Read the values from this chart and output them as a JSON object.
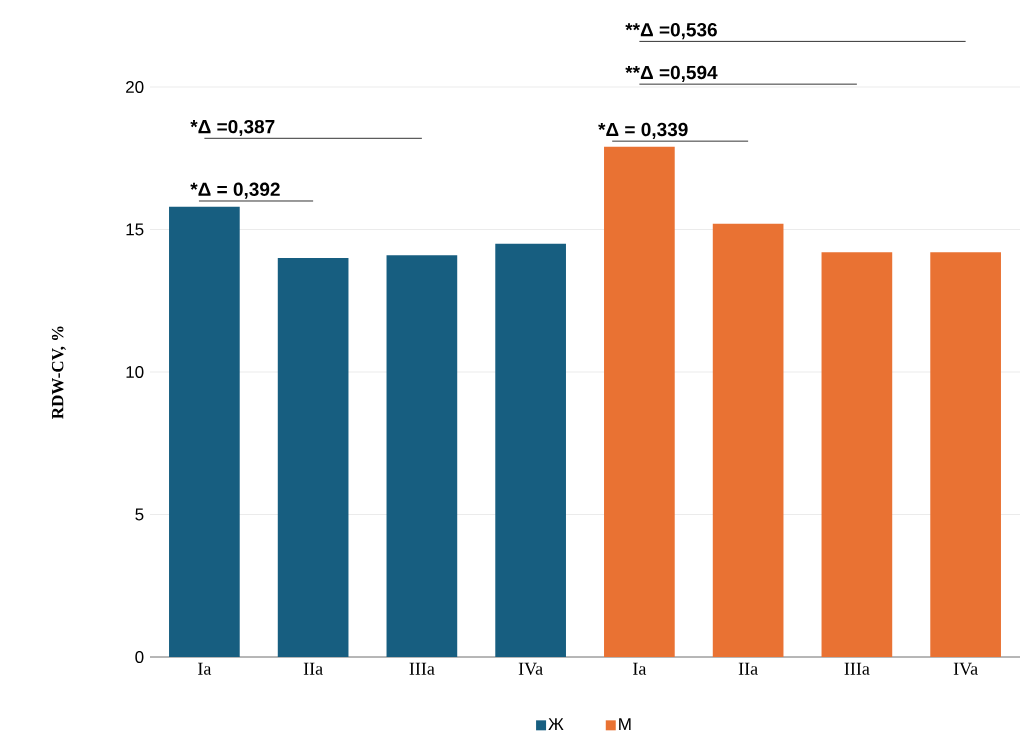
{
  "chart_data": {
    "type": "bar",
    "ylabel": "RDW-CV, %",
    "categories": [
      "Ia",
      "IIa",
      "IIIa",
      "IVa",
      "Ia",
      "IIa",
      "IIIa",
      "IVa"
    ],
    "series": [
      {
        "name": "Ж",
        "color": "#175e80",
        "values": [
          15.8,
          14.0,
          14.1,
          14.5,
          null,
          null,
          null,
          null
        ]
      },
      {
        "name": "М",
        "color": "#e97233",
        "values": [
          null,
          null,
          null,
          null,
          17.9,
          15.2,
          14.2,
          14.2
        ]
      }
    ],
    "ylim": [
      0,
      20
    ],
    "yticks": [
      0,
      5,
      10,
      15,
      20
    ],
    "grid": "y",
    "legend": "bottom",
    "annotations": [
      "*Δ = 0,392",
      "*Δ =0,387",
      "*Δ = 0,339",
      "**Δ =0,594",
      "**Δ =0,536"
    ]
  }
}
